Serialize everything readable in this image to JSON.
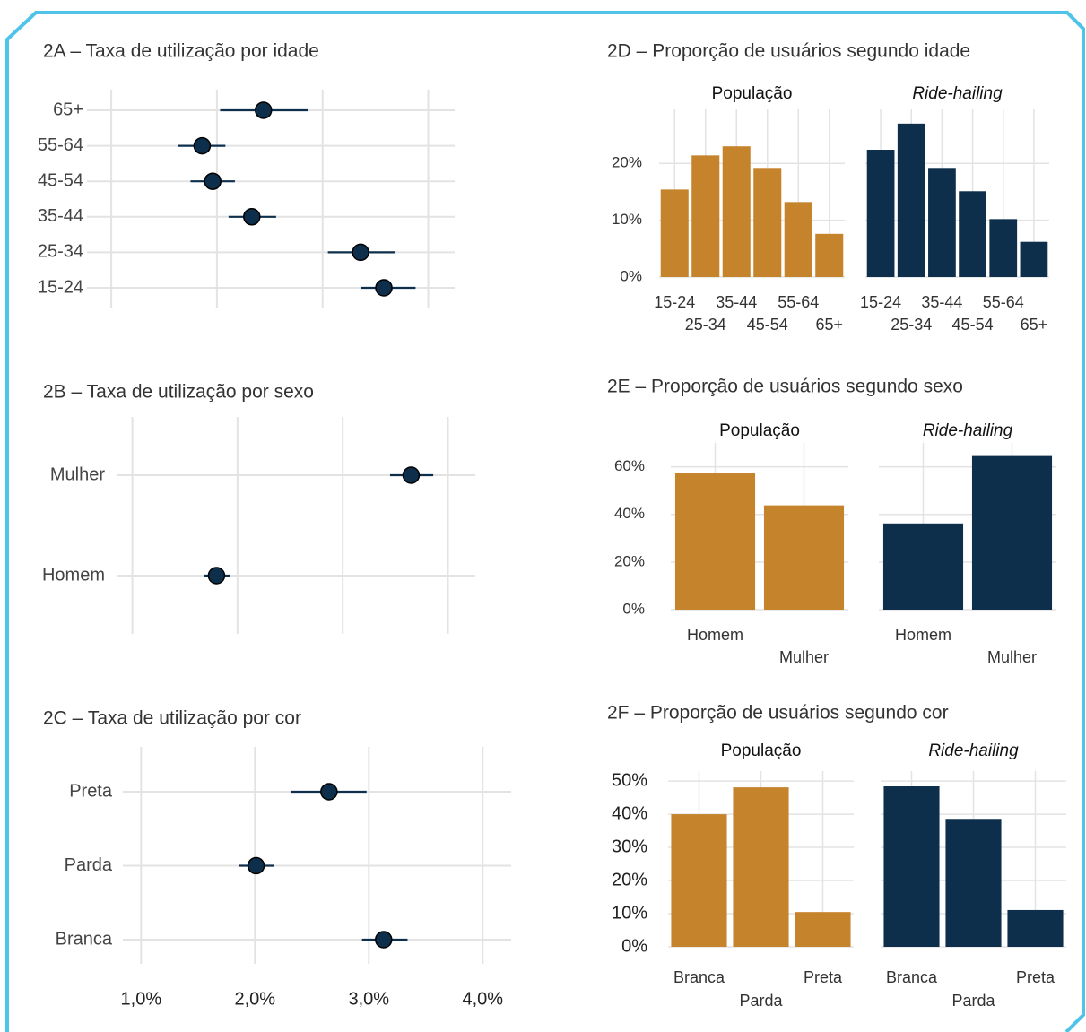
{
  "chart_data": [
    {
      "type": "dot",
      "title": "2A – Taxa de utilização por idade",
      "categories": [
        "15-24",
        "25-34",
        "35-44",
        "45-54",
        "55-64",
        "65+"
      ],
      "values": [
        3.58,
        3.36,
        2.33,
        1.96,
        1.86,
        2.44
      ],
      "lower": [
        3.36,
        3.05,
        2.11,
        1.75,
        1.63,
        2.03
      ],
      "upper": [
        3.88,
        3.69,
        2.56,
        2.17,
        2.08,
        2.86
      ],
      "color": "#0d2f4b",
      "xlim": [
        0.77,
        4.25
      ],
      "xticks": [
        1,
        2,
        3,
        4
      ],
      "xtick_labels": false,
      "grid": true
    },
    {
      "type": "dot",
      "title": "2B – Taxa de utilização por sexo",
      "categories": [
        "Homem",
        "Mulher"
      ],
      "values": [
        1.8,
        3.65
      ],
      "lower": [
        1.68,
        3.45
      ],
      "upper": [
        1.93,
        3.86
      ],
      "color": "#0d2f4b",
      "xlim": [
        0.85,
        4.26
      ],
      "xticks": [
        1,
        2,
        3,
        4
      ],
      "xtick_labels": false,
      "grid": true
    },
    {
      "type": "dot",
      "title": "2C – Taxa de utilização por cor",
      "categories": [
        "Branca",
        "Parda",
        "Preta"
      ],
      "values": [
        3.13,
        2.01,
        2.65
      ],
      "lower": [
        2.94,
        1.86,
        2.32
      ],
      "upper": [
        3.34,
        2.17,
        2.98
      ],
      "color": "#0d2f4b",
      "xlim": [
        0.84,
        4.25
      ],
      "xticks": [
        {
          "value": 1,
          "label": "1,0%"
        },
        {
          "value": 2,
          "label": "2,0%"
        },
        {
          "value": 3,
          "label": "3,0%"
        },
        {
          "value": 4,
          "label": "4,0%"
        }
      ],
      "grid": true
    },
    {
      "type": "bar",
      "title": "2D – Proporção de usuários segundo idade",
      "categories": [
        "15-24",
        "25-34",
        "35-44",
        "45-54",
        "55-64",
        "65+"
      ],
      "series": [
        {
          "name": "População",
          "color": "#c5832b",
          "values": [
            15.4,
            21.4,
            23.0,
            19.2,
            13.2,
            7.6
          ]
        },
        {
          "name": "Ride-hailing",
          "color": "#0d2f4b",
          "values": [
            22.4,
            27.0,
            19.2,
            15.1,
            10.2,
            6.2
          ]
        }
      ],
      "ylim": [
        0,
        29.5
      ],
      "yticks": [
        {
          "value": 0,
          "label": "0%"
        },
        {
          "value": 10,
          "label": "10%"
        },
        {
          "value": 20,
          "label": "20%"
        }
      ],
      "grid": true
    },
    {
      "type": "bar",
      "title": "2E – Proporção de usuários segundo sexo",
      "categories": [
        "Homem",
        "Mulher"
      ],
      "series": [
        {
          "name": "População",
          "color": "#c5832b",
          "values": [
            57.2,
            43.8
          ]
        },
        {
          "name": "Ride-hailing",
          "color": "#0d2f4b",
          "values": [
            36.2,
            64.5
          ]
        }
      ],
      "ylim": [
        0,
        70
      ],
      "yticks": [
        {
          "value": 0,
          "label": "0%"
        },
        {
          "value": 20,
          "label": "20%"
        },
        {
          "value": 40,
          "label": "40%"
        },
        {
          "value": 60,
          "label": "60%"
        }
      ],
      "grid": true
    },
    {
      "type": "bar",
      "title": "2F – Proporção de usuários segundo cor",
      "categories": [
        "Branca",
        "Parda",
        "Preta"
      ],
      "series": [
        {
          "name": "População",
          "color": "#c5832b",
          "values": [
            40.0,
            48.1,
            10.5
          ]
        },
        {
          "name": "Ride-hailing",
          "color": "#0d2f4b",
          "values": [
            48.4,
            38.6,
            11.1
          ]
        }
      ],
      "ylim": [
        0,
        53
      ],
      "yticks": [
        {
          "value": 0,
          "label": "0%"
        },
        {
          "value": 10,
          "label": "10%"
        },
        {
          "value": 20,
          "label": "20%"
        },
        {
          "value": 30,
          "label": "30%"
        },
        {
          "value": 40,
          "label": "40%"
        },
        {
          "value": 50,
          "label": "50%"
        }
      ],
      "grid": true
    }
  ]
}
